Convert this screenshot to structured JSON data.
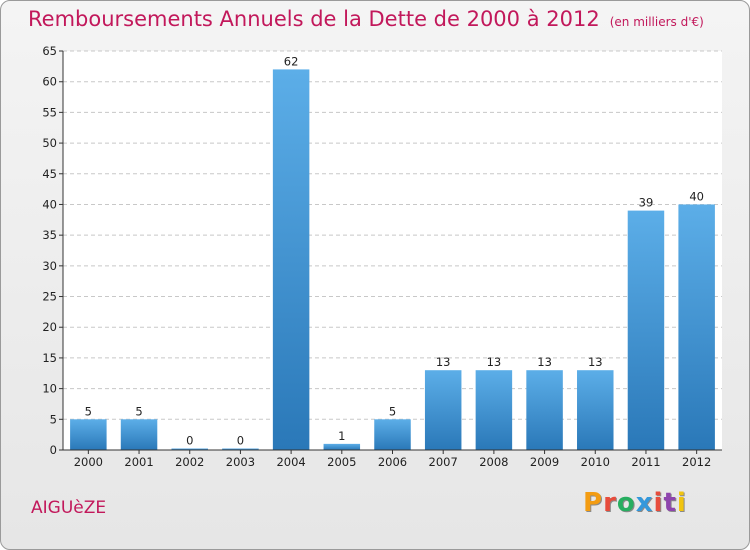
{
  "header": {
    "title": "Remboursements Annuels de la Dette de 2000 à 2012",
    "unit": "(en milliers d'€)"
  },
  "footer": {
    "commune": "AIGUèZE",
    "brand": "Proxiti",
    "brand_colors": [
      "#f39c12",
      "#e74c3c",
      "#27ae60",
      "#3498db",
      "#e74c3c",
      "#8e44ad",
      "#f1c40f"
    ]
  },
  "chart_data": {
    "type": "bar",
    "categories": [
      "2000",
      "2001",
      "2002",
      "2003",
      "2004",
      "2005",
      "2006",
      "2007",
      "2008",
      "2009",
      "2010",
      "2011",
      "2012"
    ],
    "values": [
      5,
      5,
      0,
      0,
      62,
      1,
      5,
      13,
      13,
      13,
      13,
      39,
      40
    ],
    "data_labels": [
      "5",
      "5",
      "0",
      "0",
      "62",
      "1",
      "5",
      "13",
      "13",
      "13",
      "13",
      "39",
      "40"
    ],
    "title": "Remboursements Annuels de la Dette de 2000 à 2012",
    "ylim": [
      0,
      65
    ],
    "yticks": [
      0,
      5,
      10,
      15,
      20,
      25,
      30,
      35,
      40,
      45,
      50,
      55,
      60,
      65
    ],
    "grid": true,
    "bar_color": "#4fa3e0",
    "legend": "none"
  }
}
